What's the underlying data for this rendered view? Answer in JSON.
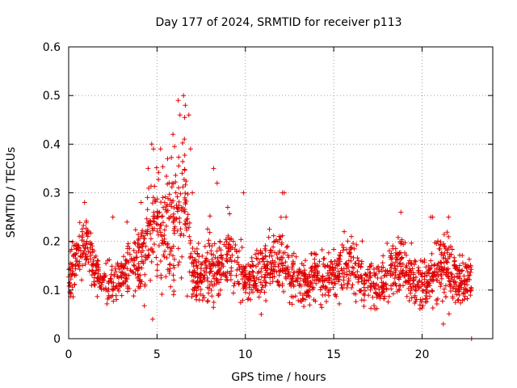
{
  "colors": {
    "series": "#e00000",
    "grid": "#a0a0a0",
    "frame": "#000000",
    "background": "#ffffff"
  },
  "chart_data": {
    "type": "scatter",
    "title": "Day 177 of 2024, SRMTID for receiver p113",
    "xlabel": "GPS time / hours",
    "ylabel": "SRMTID / TECUs",
    "xlim": [
      0,
      24
    ],
    "ylim": [
      0,
      0.6
    ],
    "xticks": [
      0,
      5,
      10,
      15,
      20
    ],
    "xtick_labels": [
      "0",
      "5",
      "10",
      "15",
      "20"
    ],
    "yticks": [
      0,
      0.1,
      0.2,
      0.3,
      0.4,
      0.5,
      0.6
    ],
    "ytick_labels": [
      "0",
      "0.1",
      "0.2",
      "0.3",
      "0.4",
      "0.5",
      "0.6"
    ],
    "grid": true,
    "marker": "+",
    "series": [
      {
        "name": "SRMTID",
        "profile": {
          "description": "approximate envelope of the point cloud read off the plot (median level and spread in TECU)",
          "x": [
            0.0,
            0.5,
            1.0,
            1.5,
            2.0,
            2.5,
            3.0,
            3.5,
            4.0,
            4.5,
            5.0,
            5.5,
            6.0,
            6.5,
            7.0,
            7.5,
            8.0,
            8.5,
            9.0,
            9.5,
            10.0,
            10.5,
            11.0,
            11.5,
            12.0,
            12.5,
            13.0,
            13.5,
            14.0,
            14.5,
            15.0,
            15.5,
            16.0,
            16.5,
            17.0,
            17.5,
            18.0,
            18.5,
            19.0,
            19.5,
            20.0,
            20.5,
            21.0,
            21.5,
            22.0,
            22.5,
            22.8
          ],
          "median": [
            0.13,
            0.16,
            0.2,
            0.14,
            0.11,
            0.12,
            0.13,
            0.14,
            0.15,
            0.2,
            0.24,
            0.22,
            0.25,
            0.28,
            0.14,
            0.13,
            0.15,
            0.14,
            0.18,
            0.15,
            0.12,
            0.12,
            0.14,
            0.15,
            0.17,
            0.13,
            0.12,
            0.11,
            0.14,
            0.12,
            0.13,
            0.14,
            0.15,
            0.13,
            0.12,
            0.11,
            0.13,
            0.15,
            0.16,
            0.12,
            0.11,
            0.13,
            0.15,
            0.15,
            0.12,
            0.11,
            0.13
          ],
          "spread": [
            0.04,
            0.05,
            0.05,
            0.04,
            0.04,
            0.04,
            0.05,
            0.05,
            0.06,
            0.09,
            0.1,
            0.09,
            0.12,
            0.13,
            0.05,
            0.05,
            0.07,
            0.06,
            0.06,
            0.06,
            0.04,
            0.04,
            0.05,
            0.05,
            0.06,
            0.05,
            0.05,
            0.04,
            0.05,
            0.05,
            0.04,
            0.05,
            0.05,
            0.05,
            0.04,
            0.04,
            0.05,
            0.06,
            0.05,
            0.05,
            0.05,
            0.05,
            0.06,
            0.07,
            0.05,
            0.04,
            0.05
          ]
        },
        "highlight_points": [
          {
            "x": 0.1,
            "y": 0.18
          },
          {
            "x": 0.9,
            "y": 0.28
          },
          {
            "x": 2.5,
            "y": 0.25
          },
          {
            "x": 3.3,
            "y": 0.24
          },
          {
            "x": 4.1,
            "y": 0.28
          },
          {
            "x": 4.5,
            "y": 0.35
          },
          {
            "x": 4.7,
            "y": 0.4
          },
          {
            "x": 4.8,
            "y": 0.39
          },
          {
            "x": 4.75,
            "y": 0.04
          },
          {
            "x": 5.2,
            "y": 0.39
          },
          {
            "x": 5.6,
            "y": 0.37
          },
          {
            "x": 5.9,
            "y": 0.42
          },
          {
            "x": 6.2,
            "y": 0.49
          },
          {
            "x": 6.3,
            "y": 0.46
          },
          {
            "x": 6.5,
            "y": 0.5
          },
          {
            "x": 6.6,
            "y": 0.48
          },
          {
            "x": 6.8,
            "y": 0.46
          },
          {
            "x": 6.9,
            "y": 0.39
          },
          {
            "x": 7.0,
            "y": 0.3
          },
          {
            "x": 8.2,
            "y": 0.35
          },
          {
            "x": 8.4,
            "y": 0.32
          },
          {
            "x": 9.0,
            "y": 0.27
          },
          {
            "x": 9.9,
            "y": 0.3
          },
          {
            "x": 10.9,
            "y": 0.05
          },
          {
            "x": 12.1,
            "y": 0.3
          },
          {
            "x": 12.2,
            "y": 0.3
          },
          {
            "x": 12.3,
            "y": 0.25
          },
          {
            "x": 16.0,
            "y": 0.21
          },
          {
            "x": 18.8,
            "y": 0.26
          },
          {
            "x": 20.5,
            "y": 0.25
          },
          {
            "x": 20.6,
            "y": 0.25
          },
          {
            "x": 21.5,
            "y": 0.25
          },
          {
            "x": 21.2,
            "y": 0.03
          },
          {
            "x": 22.8,
            "y": 0.0
          }
        ]
      }
    ]
  }
}
